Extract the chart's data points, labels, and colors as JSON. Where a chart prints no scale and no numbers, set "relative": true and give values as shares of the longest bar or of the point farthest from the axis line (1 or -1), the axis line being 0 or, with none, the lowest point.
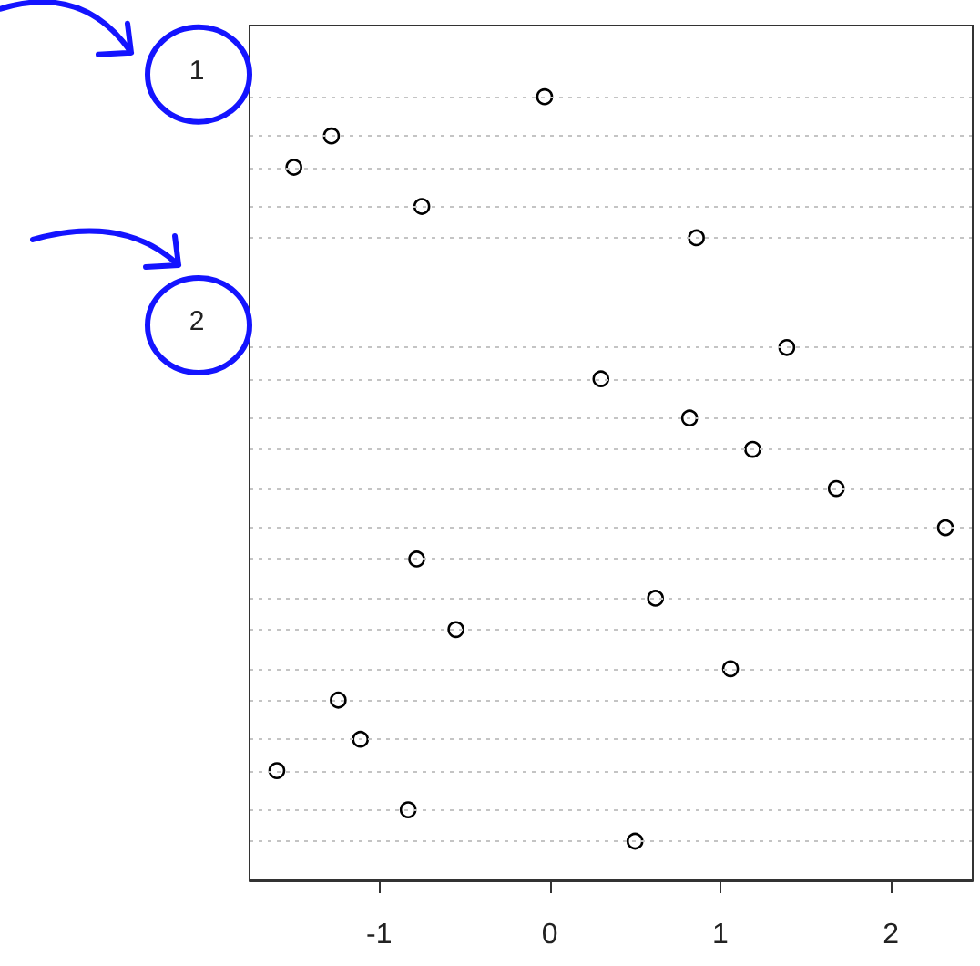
{
  "chart_data": {
    "type": "scatter",
    "relative": true,
    "x": [
      -0.03,
      -1.28,
      -1.5,
      -0.75,
      0.86,
      1.39,
      0.3,
      0.82,
      1.19,
      1.68,
      2.32,
      -0.78,
      0.62,
      -0.55,
      1.06,
      -1.24,
      -1.11,
      -1.6,
      -0.83,
      0.5
    ],
    "values": [
      1,
      0.95,
      0.91,
      0.86,
      0.82,
      0.68,
      0.64,
      0.59,
      0.55,
      0.5,
      0.45,
      0.41,
      0.36,
      0.32,
      0.27,
      0.23,
      0.18,
      0.14,
      0.09,
      0.05
    ],
    "color": "#000000",
    "marker": "circle",
    "xlim": [
      -1.76,
      2.48
    ],
    "xticks": [
      -1,
      0,
      1,
      2
    ],
    "tick_labels": "x",
    "ref_lines": [
      {
        "axis": "y",
        "value": 1,
        "color": "#c4c4c4",
        "line_style": "dotted"
      },
      {
        "axis": "y",
        "value": 0.95,
        "color": "#c4c4c4",
        "line_style": "dotted"
      },
      {
        "axis": "y",
        "value": 0.91,
        "color": "#c4c4c4",
        "line_style": "dotted"
      },
      {
        "axis": "y",
        "value": 0.86,
        "color": "#c4c4c4",
        "line_style": "dotted"
      },
      {
        "axis": "y",
        "value": 0.82,
        "color": "#c4c4c4",
        "line_style": "dotted"
      },
      {
        "axis": "y",
        "value": 0.68,
        "color": "#c4c4c4",
        "line_style": "dotted"
      },
      {
        "axis": "y",
        "value": 0.64,
        "color": "#c4c4c4",
        "line_style": "dotted"
      },
      {
        "axis": "y",
        "value": 0.59,
        "color": "#c4c4c4",
        "line_style": "dotted"
      },
      {
        "axis": "y",
        "value": 0.55,
        "color": "#c4c4c4",
        "line_style": "dotted"
      },
      {
        "axis": "y",
        "value": 0.5,
        "color": "#c4c4c4",
        "line_style": "dotted"
      },
      {
        "axis": "y",
        "value": 0.45,
        "color": "#c4c4c4",
        "line_style": "dotted"
      },
      {
        "axis": "y",
        "value": 0.41,
        "color": "#c4c4c4",
        "line_style": "dotted"
      },
      {
        "axis": "y",
        "value": 0.36,
        "color": "#c4c4c4",
        "line_style": "dotted"
      },
      {
        "axis": "y",
        "value": 0.32,
        "color": "#c4c4c4",
        "line_style": "dotted"
      },
      {
        "axis": "y",
        "value": 0.27,
        "color": "#c4c4c4",
        "line_style": "dotted"
      },
      {
        "axis": "y",
        "value": 0.23,
        "color": "#c4c4c4",
        "line_style": "dotted"
      },
      {
        "axis": "y",
        "value": 0.18,
        "color": "#c4c4c4",
        "line_style": "dotted"
      },
      {
        "axis": "y",
        "value": 0.14,
        "color": "#c4c4c4",
        "line_style": "dotted"
      },
      {
        "axis": "y",
        "value": 0.09,
        "color": "#c4c4c4",
        "line_style": "dotted"
      },
      {
        "axis": "y",
        "value": 0.05,
        "color": "#c4c4c4",
        "line_style": "dotted"
      }
    ],
    "annotations": [
      "1",
      "2"
    ]
  }
}
